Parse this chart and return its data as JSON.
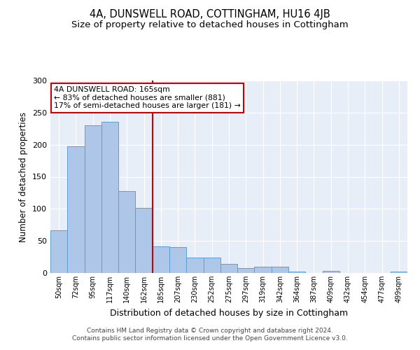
{
  "title": "4A, DUNSWELL ROAD, COTTINGHAM, HU16 4JB",
  "subtitle": "Size of property relative to detached houses in Cottingham",
  "xlabel": "Distribution of detached houses by size in Cottingham",
  "ylabel": "Number of detached properties",
  "categories": [
    "50sqm",
    "72sqm",
    "95sqm",
    "117sqm",
    "140sqm",
    "162sqm",
    "185sqm",
    "207sqm",
    "230sqm",
    "252sqm",
    "275sqm",
    "297sqm",
    "319sqm",
    "342sqm",
    "364sqm",
    "387sqm",
    "409sqm",
    "432sqm",
    "454sqm",
    "477sqm",
    "499sqm"
  ],
  "values": [
    67,
    197,
    230,
    236,
    128,
    102,
    41,
    40,
    24,
    24,
    14,
    8,
    10,
    10,
    2,
    0,
    3,
    0,
    0,
    0,
    2
  ],
  "bar_color": "#aec6e8",
  "bar_edge_color": "#5a9fd4",
  "vline_x": 5.5,
  "vline_color": "#cc0000",
  "annotation_text": "4A DUNSWELL ROAD: 165sqm\n← 83% of detached houses are smaller (881)\n17% of semi-detached houses are larger (181) →",
  "annotation_box_color": "#ffffff",
  "annotation_box_edge": "#cc0000",
  "ylim": [
    0,
    300
  ],
  "yticks": [
    0,
    50,
    100,
    150,
    200,
    250,
    300
  ],
  "footnote": "Contains HM Land Registry data © Crown copyright and database right 2024.\nContains public sector information licensed under the Open Government Licence v3.0.",
  "bg_color": "#e8eef8",
  "title_fontsize": 10.5,
  "subtitle_fontsize": 9.5
}
